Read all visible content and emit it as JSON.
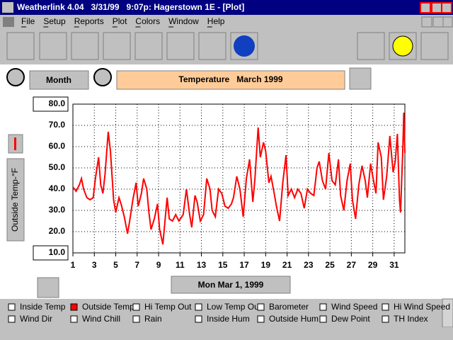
{
  "window": {
    "title": "Weatherlink 4.04   3/31/99   9:07p: Hagerstown 1E - [Plot]"
  },
  "menu": [
    "File",
    "Setup",
    "Reports",
    "Plot",
    "Colors",
    "Window",
    "Help"
  ],
  "controls": {
    "range_button": "Month",
    "date_button": "Mon Mar 1, 1999"
  },
  "chart_data": {
    "type": "line",
    "title": "Temperature   March 1999",
    "y_label": "Outside Temp-°F",
    "x": [
      1,
      1.3,
      1.6,
      1.8,
      2,
      2.3,
      2.6,
      2.9,
      3.1,
      3.4,
      3.6,
      3.8,
      4,
      4.3,
      4.5,
      4.8,
      5,
      5.3,
      5.5,
      5.8,
      6.1,
      6.3,
      6.6,
      6.9,
      7.1,
      7.4,
      7.6,
      7.9,
      8.1,
      8.3,
      8.6,
      8.9,
      9.1,
      9.4,
      9.6,
      9.8,
      10,
      10.3,
      10.6,
      10.9,
      11.3,
      11.6,
      11.9,
      12.1,
      12.4,
      12.6,
      12.9,
      13.2,
      13.5,
      13.8,
      14,
      14.3,
      14.6,
      14.9,
      15.2,
      15.5,
      15.8,
      16,
      16.3,
      16.6,
      16.9,
      17.2,
      17.5,
      17.8,
      18,
      18.3,
      18.5,
      18.8,
      19,
      19.3,
      19.5,
      19.8,
      20,
      20.3,
      20.6,
      20.9,
      21.1,
      21.4,
      21.7,
      22,
      22.3,
      22.6,
      22.9,
      23.2,
      23.5,
      23.8,
      24,
      24.3,
      24.6,
      24.9,
      25.2,
      25.5,
      25.8,
      26,
      26.3,
      26.6,
      26.9,
      27.1,
      27.4,
      27.7,
      28,
      28.3,
      28.5,
      28.8,
      29,
      29.3,
      29.5,
      29.8,
      30,
      30.3,
      30.6,
      30.9,
      31.1,
      31.3,
      31.5,
      31.6,
      31.8,
      31.9,
      32
    ],
    "series": [
      {
        "name": "Outside Temp",
        "color": "#ff0000",
        "values": [
          41,
          39,
          42,
          45,
          40,
          36,
          35,
          36,
          45,
          55,
          42,
          38,
          47,
          67,
          58,
          35,
          29,
          36,
          33,
          27,
          19,
          25,
          35,
          43,
          32,
          38,
          45,
          40,
          29,
          21,
          26,
          33,
          21,
          14,
          25,
          36,
          26,
          25,
          28,
          25,
          28,
          40,
          28,
          22,
          37,
          34,
          25,
          28,
          45,
          40,
          30,
          27,
          40,
          38,
          32,
          31,
          33,
          36,
          46,
          40,
          27,
          45,
          54,
          34,
          45,
          69,
          55,
          62,
          58,
          43,
          46,
          38,
          32,
          25,
          43,
          56,
          37,
          40,
          36,
          40,
          38,
          31,
          40,
          38,
          37,
          50,
          53,
          44,
          40,
          57,
          44,
          42,
          54,
          37,
          30,
          44,
          52,
          35,
          26,
          42,
          51,
          44,
          36,
          52,
          46,
          38,
          62,
          55,
          35,
          46,
          65,
          48,
          53,
          66,
          35,
          29,
          58,
          76,
          57
        ]
      }
    ],
    "xlim": [
      1,
      32
    ],
    "ylim": [
      10,
      80
    ],
    "xticks": [
      1,
      3,
      5,
      7,
      9,
      11,
      13,
      15,
      17,
      19,
      21,
      23,
      25,
      27,
      29,
      31
    ],
    "yticks": [
      {
        "value": 10,
        "label": "10.0"
      },
      {
        "value": 20,
        "label": "20.0"
      },
      {
        "value": 30,
        "label": "30.0"
      },
      {
        "value": 40,
        "label": "40.0"
      },
      {
        "value": 50,
        "label": "50.0"
      },
      {
        "value": 60,
        "label": "60.0"
      },
      {
        "value": 70,
        "label": "70.0"
      },
      {
        "value": 80,
        "label": "80.0"
      }
    ],
    "grid": true
  },
  "sensors": [
    "Inside Temp",
    "Outside Temp",
    "Hi Temp Out",
    "Low Temp Out",
    "Barometer",
    "Wind Speed",
    "Hi Wind Speed",
    "Wind Dir",
    "Wind Chill",
    "Rain",
    "Inside Hum",
    "Outside Hum",
    "Dew Point",
    "TH Index"
  ]
}
